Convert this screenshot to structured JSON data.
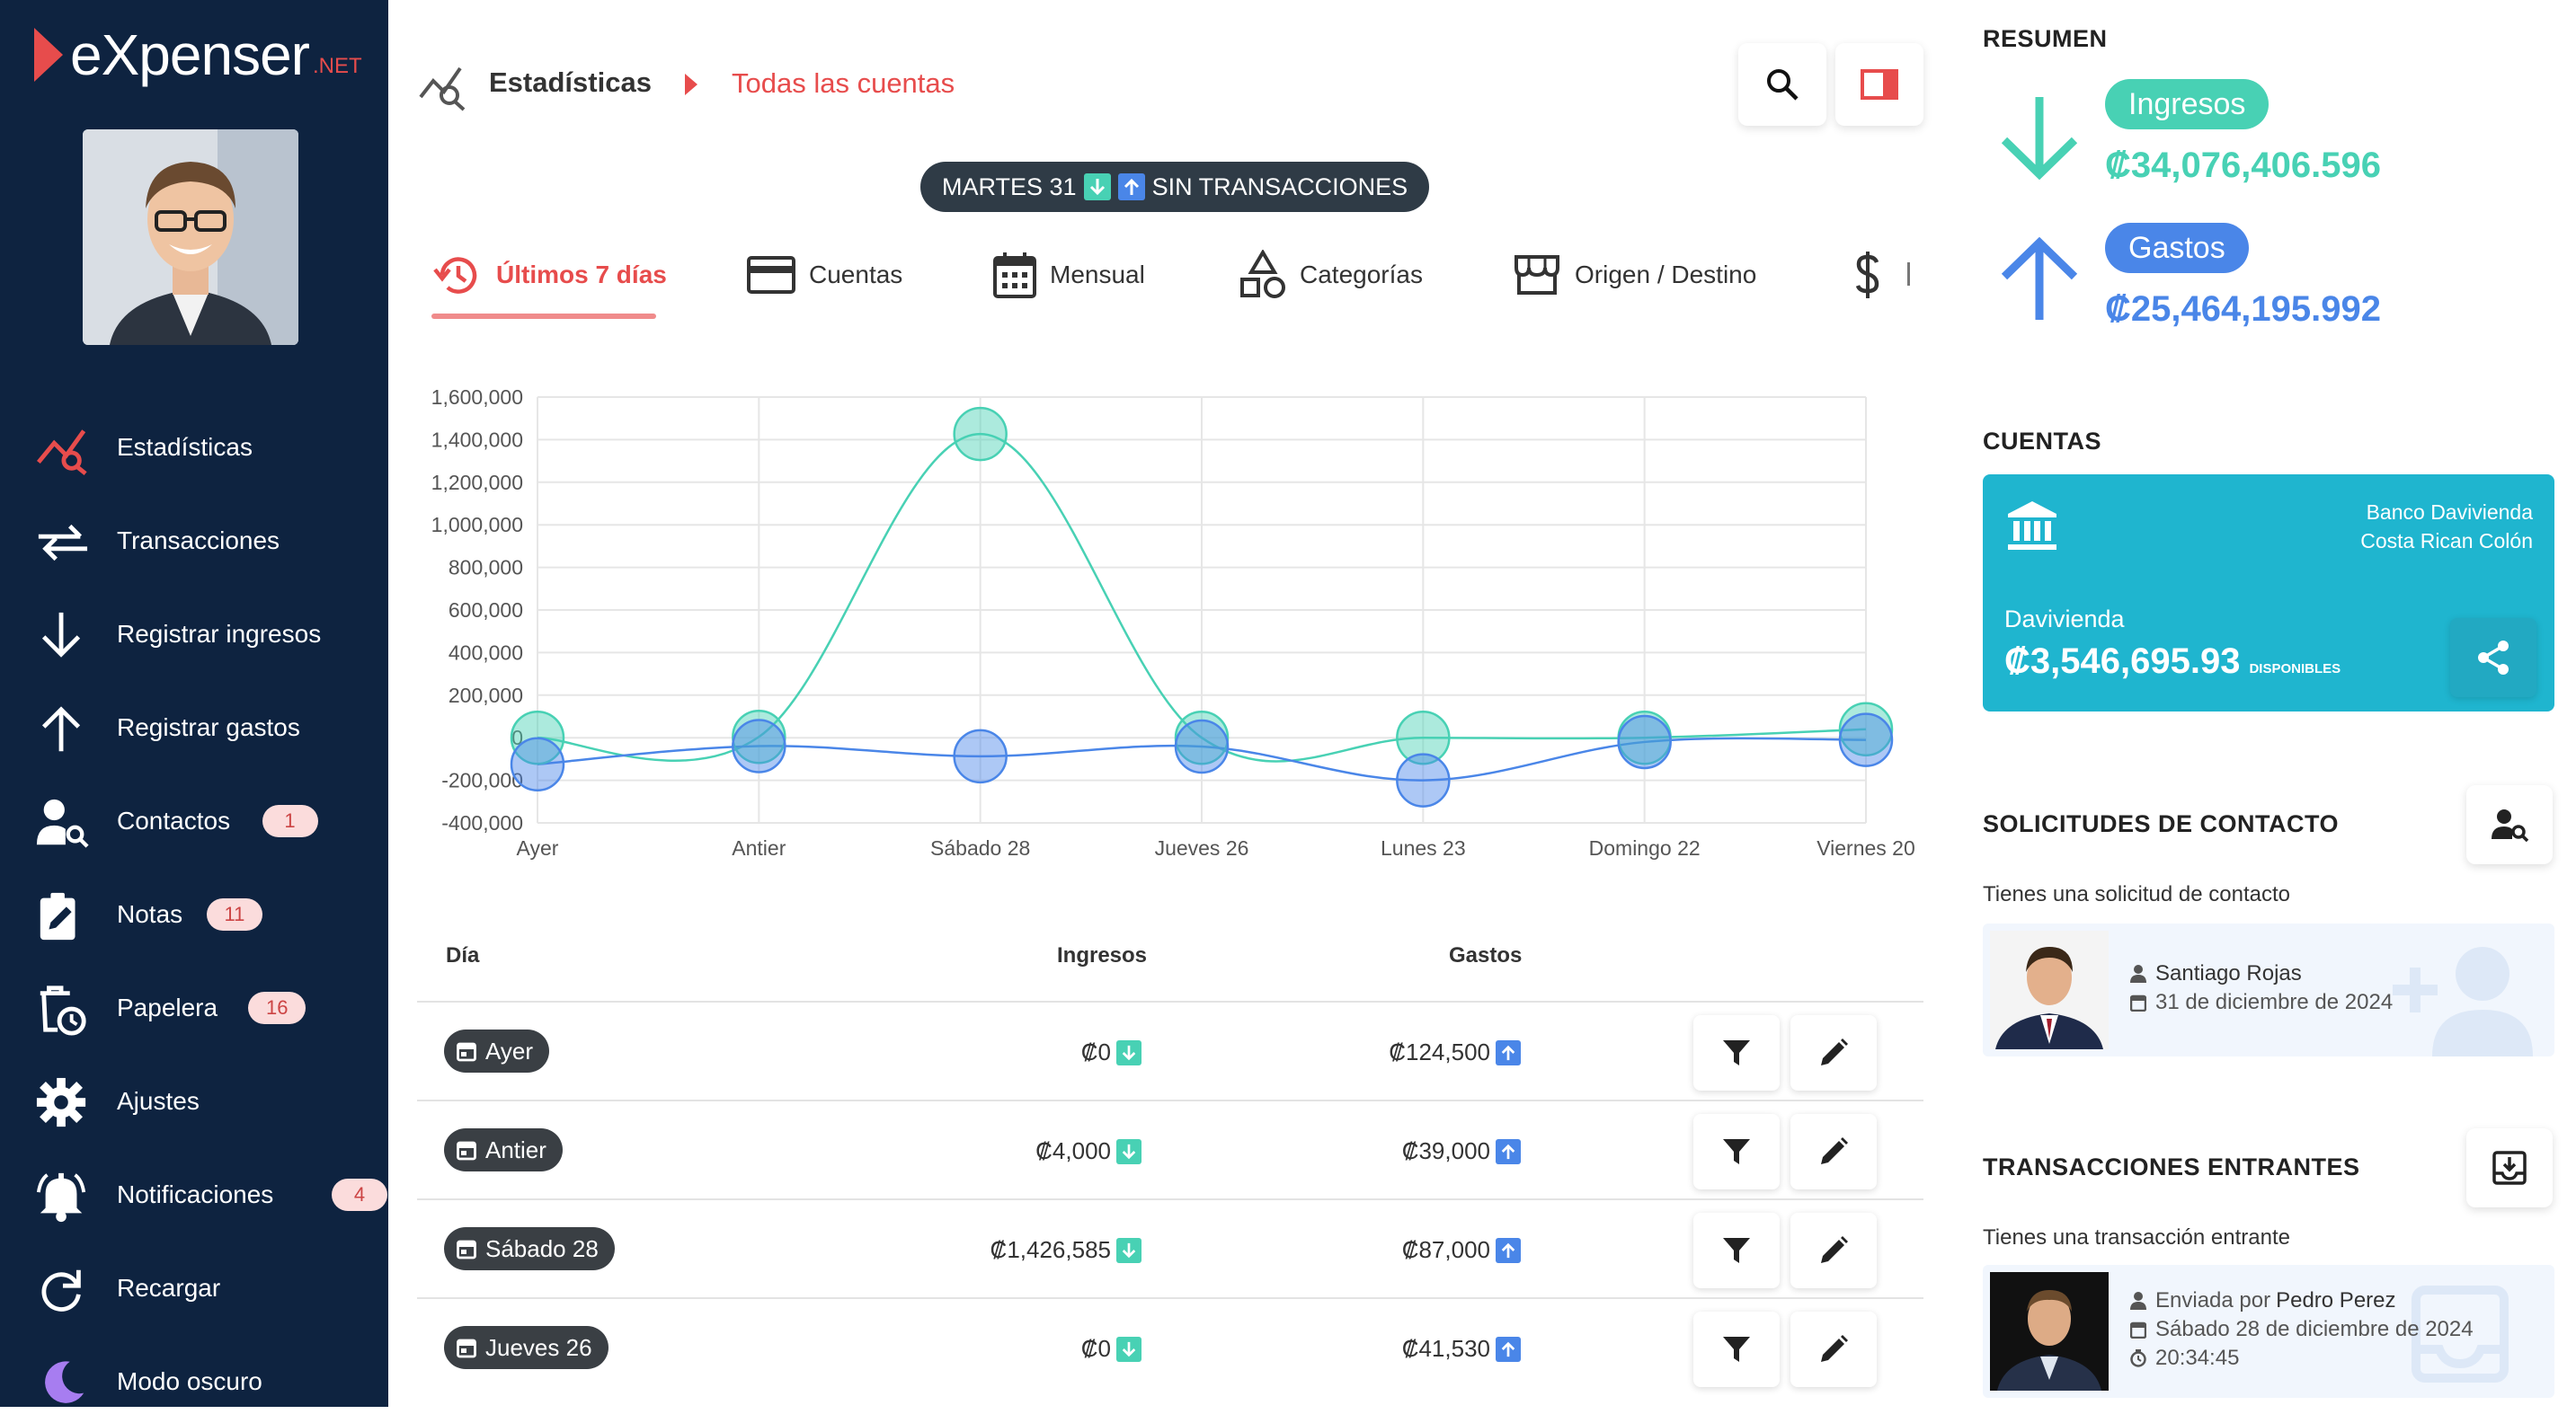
{
  "brand": {
    "name": "eXpenser",
    "suffix": ".NET"
  },
  "sidebar": {
    "items": [
      {
        "label": "Estadísticas",
        "icon": "chart-search-icon",
        "badge": null
      },
      {
        "label": "Transacciones",
        "icon": "transfer-icon",
        "badge": null
      },
      {
        "label": "Registrar ingresos",
        "icon": "arrow-down-icon",
        "badge": null
      },
      {
        "label": "Registrar gastos",
        "icon": "arrow-up-icon",
        "badge": null
      },
      {
        "label": "Contactos",
        "icon": "user-search-icon",
        "badge": "1"
      },
      {
        "label": "Notas",
        "icon": "note-edit-icon",
        "badge": "11"
      },
      {
        "label": "Papelera",
        "icon": "trash-clock-icon",
        "badge": "16"
      },
      {
        "label": "Ajustes",
        "icon": "gear-icon",
        "badge": null
      },
      {
        "label": "Notificaciones",
        "icon": "bell-icon",
        "badge": "4"
      },
      {
        "label": "Recargar",
        "icon": "reload-icon",
        "badge": null
      },
      {
        "label": "Modo oscuro",
        "icon": "moon-icon",
        "badge": null
      }
    ]
  },
  "header": {
    "title": "Estadísticas",
    "crumb": "Todas las cuentas"
  },
  "date_pill": {
    "day": "MARTES 31",
    "status": "SIN TRANSACCIONES"
  },
  "tabs": [
    {
      "label": "Últimos 7 días",
      "icon": "history-icon",
      "active": true
    },
    {
      "label": "Cuentas",
      "icon": "card-icon",
      "active": false
    },
    {
      "label": "Mensual",
      "icon": "calendar-icon",
      "active": false
    },
    {
      "label": "Categorías",
      "icon": "shapes-icon",
      "active": false
    },
    {
      "label": "Origen / Destino",
      "icon": "store-icon",
      "active": false
    },
    {
      "label": "",
      "icon": "dollar-icon",
      "active": false
    }
  ],
  "chart_data": {
    "type": "line",
    "categories": [
      "Ayer",
      "Antier",
      "Sábado 28",
      "Jueves 26",
      "Lunes 23",
      "Domingo 22",
      "Viernes 20"
    ],
    "series": [
      {
        "color": "#48d1b4",
        "values": [
          0,
          4000,
          1426585,
          0,
          0,
          0,
          40000
        ]
      },
      {
        "color": "#4a86e8",
        "values": [
          -124500,
          -39000,
          -87000,
          -41530,
          -200000,
          -20000,
          -10000
        ]
      }
    ],
    "yticks": [
      "1,600,000",
      "1,400,000",
      "1,200,000",
      "1,000,000",
      "800,000",
      "600,000",
      "400,000",
      "200,000",
      "0",
      "-200,000",
      "-400,000"
    ],
    "ylim": [
      -400000,
      1600000
    ],
    "grid": true
  },
  "table": {
    "headers": {
      "day": "Día",
      "income": "Ingresos",
      "expense": "Gastos"
    },
    "rows": [
      {
        "day": "Ayer",
        "income": "₡0",
        "expense": "₡124,500"
      },
      {
        "day": "Antier",
        "income": "₡4,000",
        "expense": "₡39,000"
      },
      {
        "day": "Sábado 28",
        "income": "₡1,426,585",
        "expense": "₡87,000"
      },
      {
        "day": "Jueves 26",
        "income": "₡0",
        "expense": "₡41,530"
      }
    ]
  },
  "summary": {
    "title": "RESUMEN",
    "income_label": "Ingresos",
    "income_amount": "₡34,076,406.596",
    "expense_label": "Gastos",
    "expense_amount": "₡25,464,195.992",
    "income_color": "#48d1b4",
    "expense_color": "#4a86e8"
  },
  "accounts": {
    "title": "CUENTAS",
    "bank": "Banco Davivienda",
    "currency": "Costa Rican Colón",
    "name": "Davivienda",
    "balance": "₡3,546,695.93",
    "available": "DISPONIBLES"
  },
  "contact_requests": {
    "title": "SOLICITUDES DE CONTACTO",
    "subtitle": "Tienes una solicitud de contacto",
    "name": "Santiago Rojas",
    "date": "31 de diciembre de 2024"
  },
  "incoming": {
    "title": "TRANSACCIONES ENTRANTES",
    "subtitle": "Tienes una transacción entrante",
    "sent_by_prefix": "Enviada por",
    "sender": "Pedro Perez",
    "date": "Sábado 28 de diciembre de 2024",
    "time": "20:34:45"
  }
}
